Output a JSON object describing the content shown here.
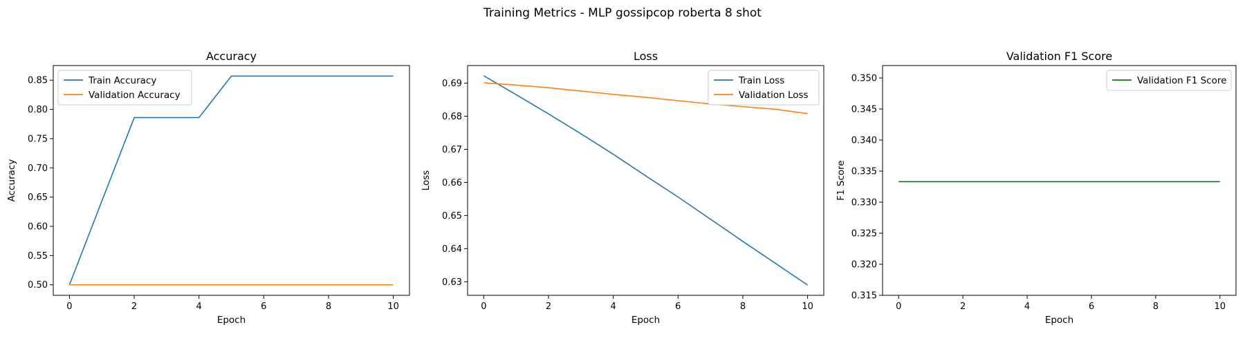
{
  "figure": {
    "title": "Training Metrics - MLP gossipcop roberta 8 shot"
  },
  "chart_data": [
    {
      "type": "line",
      "title": "Accuracy",
      "xlabel": "Epoch",
      "ylabel": "Accuracy",
      "xlim": [
        -0.5,
        10.5
      ],
      "ylim": [
        0.482,
        0.875
      ],
      "xticks": [
        0,
        2,
        4,
        6,
        8,
        10
      ],
      "yticks": [
        0.5,
        0.55,
        0.6,
        0.65,
        0.7,
        0.75,
        0.8,
        0.85
      ],
      "ytick_decimals": 2,
      "legend_position": "top-left",
      "x": [
        0,
        1,
        2,
        3,
        4,
        5,
        6,
        7,
        8,
        9,
        10
      ],
      "series": [
        {
          "name": "Train Accuracy",
          "color": "#1f77b4",
          "values": [
            0.5,
            0.643,
            0.786,
            0.786,
            0.786,
            0.857,
            0.857,
            0.857,
            0.857,
            0.857,
            0.857
          ]
        },
        {
          "name": "Validation Accuracy",
          "color": "#ff7f0e",
          "values": [
            0.5,
            0.5,
            0.5,
            0.5,
            0.5,
            0.5,
            0.5,
            0.5,
            0.5,
            0.5,
            0.5
          ]
        }
      ]
    },
    {
      "type": "line",
      "title": "Loss",
      "xlabel": "Epoch",
      "ylabel": "Loss",
      "xlim": [
        -0.5,
        10.5
      ],
      "ylim": [
        0.6259,
        0.6953
      ],
      "xticks": [
        0,
        2,
        4,
        6,
        8,
        10
      ],
      "yticks": [
        0.63,
        0.64,
        0.65,
        0.66,
        0.67,
        0.68,
        0.69
      ],
      "ytick_decimals": 2,
      "legend_position": "top-right",
      "x": [
        0,
        1,
        2,
        3,
        4,
        5,
        6,
        7,
        8,
        9,
        10
      ],
      "series": [
        {
          "name": "Train Loss",
          "color": "#1f77b4",
          "values": [
            0.6922,
            0.6865,
            0.6807,
            0.6747,
            0.6685,
            0.662,
            0.6556,
            0.6489,
            0.6422,
            0.6356,
            0.629
          ]
        },
        {
          "name": "Validation Loss",
          "color": "#ff7f0e",
          "values": [
            0.6901,
            0.6894,
            0.6886,
            0.6876,
            0.6866,
            0.6857,
            0.6847,
            0.6837,
            0.6829,
            0.6821,
            0.6808
          ]
        }
      ]
    },
    {
      "type": "line",
      "title": "Validation F1 Score",
      "xlabel": "Epoch",
      "ylabel": "F1 Score",
      "xlim": [
        -0.5,
        10.5
      ],
      "ylim": [
        0.315,
        0.352
      ],
      "xticks": [
        0,
        2,
        4,
        6,
        8,
        10
      ],
      "yticks": [
        0.315,
        0.32,
        0.325,
        0.33,
        0.335,
        0.34,
        0.345,
        0.35
      ],
      "ytick_decimals": 3,
      "legend_position": "top-right",
      "x": [
        0,
        1,
        2,
        3,
        4,
        5,
        6,
        7,
        8,
        9,
        10
      ],
      "series": [
        {
          "name": "Validation F1 Score",
          "color": "#008000",
          "values": [
            0.3333,
            0.3333,
            0.3333,
            0.3333,
            0.3333,
            0.3333,
            0.3333,
            0.3333,
            0.3333,
            0.3333,
            0.3333
          ]
        }
      ]
    }
  ]
}
